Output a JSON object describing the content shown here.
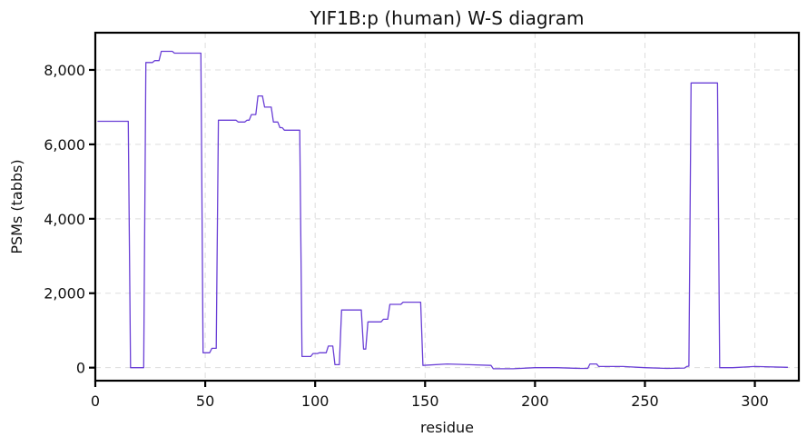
{
  "chart_data": {
    "type": "line",
    "title": "YIF1B:p (human) W-S diagram",
    "xlabel": "residue",
    "ylabel": "PSMs (tabbs)",
    "xlim": [
      0,
      320
    ],
    "ylim": [
      -350,
      9000
    ],
    "xticks": [
      0,
      50,
      100,
      150,
      200,
      250,
      300
    ],
    "yticks": [
      0,
      2000,
      4000,
      6000,
      8000
    ],
    "ytick_labels": [
      "0",
      "2,000",
      "4,000",
      "6,000",
      "8,000"
    ],
    "grid": true,
    "series_color": "#6a3fd6",
    "x": [
      1,
      15,
      16,
      22,
      23,
      26,
      27,
      29,
      30,
      35,
      36,
      48,
      49,
      52,
      53,
      55,
      56,
      64,
      65,
      68,
      69,
      70,
      71,
      73,
      74,
      76,
      77,
      80,
      81,
      83,
      84,
      85,
      86,
      93,
      94,
      98,
      99,
      101,
      102,
      105,
      106,
      108,
      109,
      111,
      112,
      121,
      122,
      123,
      124,
      130,
      131,
      133,
      134,
      139,
      140,
      148,
      149,
      160,
      170,
      180,
      181,
      190,
      200,
      210,
      220,
      224,
      225,
      228,
      229,
      240,
      250,
      260,
      268,
      269,
      270,
      271,
      283,
      284,
      290,
      300,
      315
    ],
    "y": [
      6620,
      6620,
      0,
      0,
      8200,
      8200,
      8250,
      8250,
      8500,
      8500,
      8450,
      8450,
      400,
      400,
      520,
      520,
      6650,
      6650,
      6600,
      6600,
      6650,
      6650,
      6800,
      6800,
      7300,
      7300,
      7000,
      7000,
      6600,
      6600,
      6450,
      6450,
      6380,
      6380,
      300,
      300,
      380,
      380,
      400,
      400,
      580,
      580,
      80,
      80,
      1550,
      1550,
      500,
      500,
      1230,
      1230,
      1300,
      1300,
      1700,
      1700,
      1760,
      1760,
      60,
      100,
      80,
      60,
      -30,
      -30,
      0,
      0,
      -20,
      -20,
      100,
      100,
      30,
      30,
      0,
      -20,
      -10,
      30,
      40,
      7650,
      7650,
      0,
      0,
      30,
      10
    ]
  }
}
